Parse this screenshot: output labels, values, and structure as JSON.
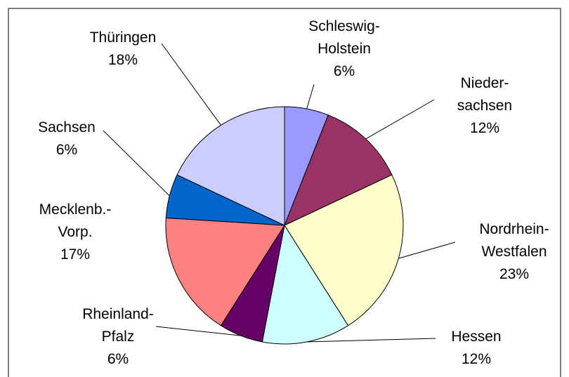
{
  "chart_data": {
    "type": "pie",
    "categories": [
      "Schleswig-\nHolstein",
      "Nieder-\nsachsen",
      "Nordrhein-\nWestfalen",
      "Hessen",
      "Rheinland-\nPfalz",
      "Mecklenb.-\nVorp.",
      "Sachsen",
      "Thüringen"
    ],
    "values": [
      6,
      12,
      23,
      12,
      6,
      17,
      6,
      18
    ],
    "value_labels": [
      "6%",
      "12%",
      "23%",
      "12%",
      "6%",
      "17%",
      "6%",
      "18%"
    ],
    "colors": [
      "#9999ff",
      "#993366",
      "#ffffcc",
      "#ccffff",
      "#660066",
      "#ff8080",
      "#0066cc",
      "#ccccff"
    ]
  }
}
